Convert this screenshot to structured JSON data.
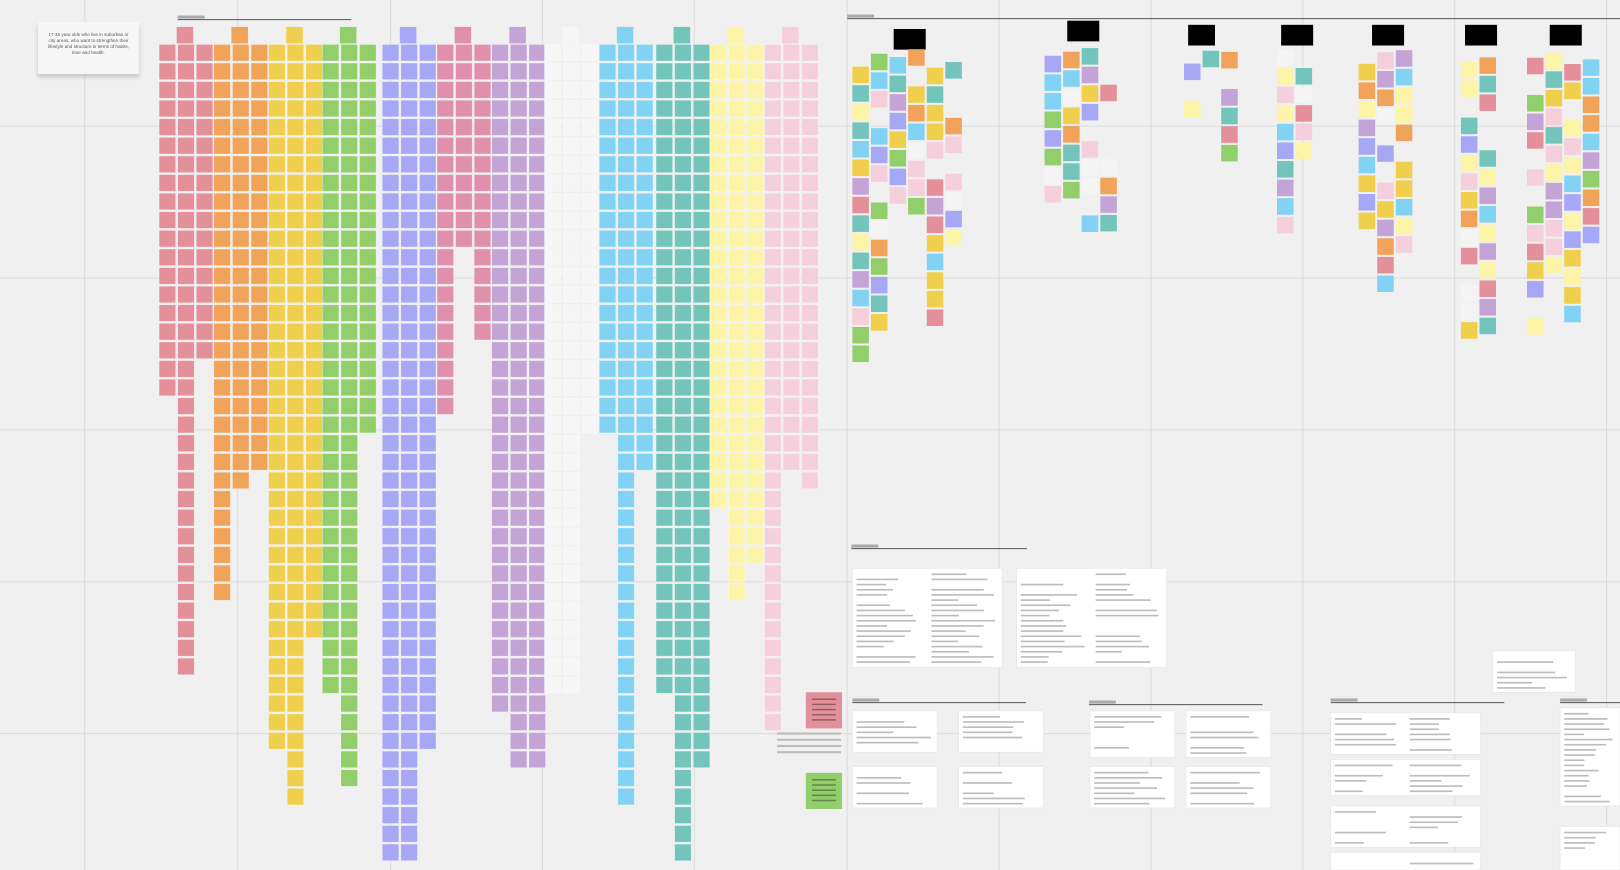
{
  "sticky_note": {
    "text": "17-35 year olds who live in suburban or city areas, who want to strengthen their lifestyle and structure in terms of habits, time and health."
  }
}
